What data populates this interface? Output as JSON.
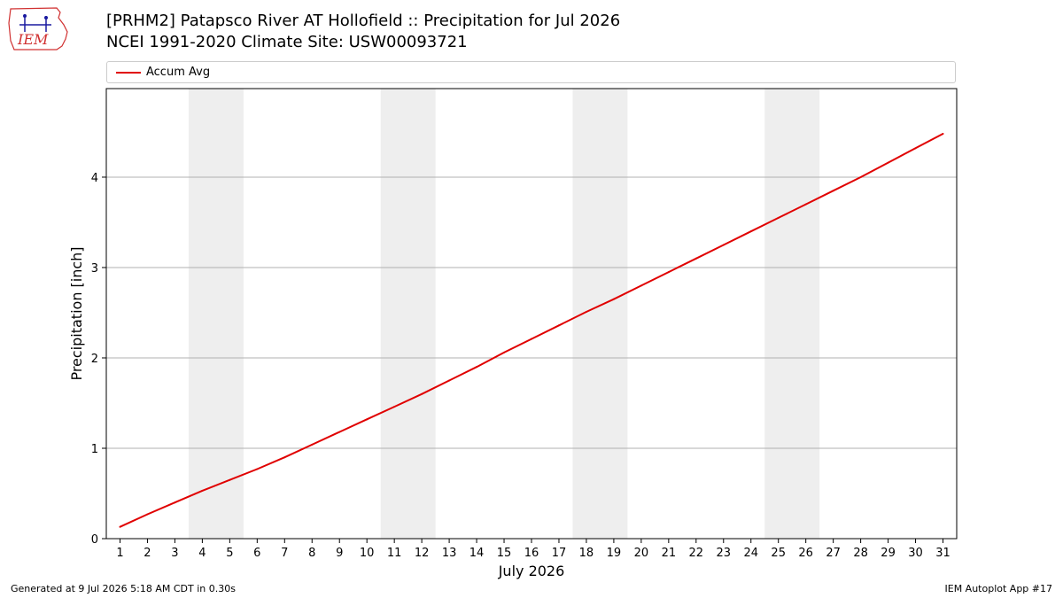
{
  "header": {
    "title_line1": "[PRHM2] Patapsco River  AT Hollofield :: Precipitation for Jul 2026",
    "title_line2": "NCEI 1991-2020 Climate Site: USW00093721",
    "logo_text": "IEM"
  },
  "colors": {
    "line": "#e00000",
    "weekend_band": "#eeeeee",
    "grid": "#b0b0b0",
    "logo": "#d03030"
  },
  "chart_data": {
    "type": "line",
    "title": "[PRHM2] Patapsco River  AT Hollofield :: Precipitation for Jul 2026",
    "subtitle": "NCEI 1991-2020 Climate Site: USW00093721",
    "xlabel": "July 2026",
    "ylabel": "Precipitation [inch]",
    "xlim": [
      0.5,
      31.5
    ],
    "ylim": [
      0,
      4.98
    ],
    "yticks": [
      0,
      1,
      2,
      3,
      4
    ],
    "x_tick_labels": [
      "1",
      "2",
      "3",
      "4",
      "5",
      "6",
      "7",
      "8",
      "9",
      "10",
      "11",
      "12",
      "13",
      "14",
      "15",
      "16",
      "17",
      "18",
      "19",
      "20",
      "21",
      "22",
      "23",
      "24",
      "25",
      "26",
      "27",
      "28",
      "29",
      "30",
      "31"
    ],
    "weekend_bands": [
      [
        3.5,
        5.5
      ],
      [
        10.5,
        12.5
      ],
      [
        17.5,
        19.5
      ],
      [
        24.5,
        26.5
      ]
    ],
    "grid": "y",
    "legend_position": "top",
    "series": [
      {
        "name": "Accum Avg",
        "x": [
          1,
          2,
          3,
          4,
          5,
          6,
          7,
          8,
          9,
          10,
          11,
          12,
          13,
          14,
          15,
          16,
          17,
          18,
          19,
          20,
          21,
          22,
          23,
          24,
          25,
          26,
          27,
          28,
          29,
          30,
          31
        ],
        "y": [
          0.13,
          0.27,
          0.4,
          0.53,
          0.65,
          0.77,
          0.9,
          1.04,
          1.18,
          1.32,
          1.46,
          1.6,
          1.75,
          1.9,
          2.06,
          2.21,
          2.36,
          2.51,
          2.65,
          2.8,
          2.95,
          3.1,
          3.25,
          3.4,
          3.55,
          3.7,
          3.85,
          4.0,
          4.16,
          4.32,
          4.48
        ]
      }
    ]
  },
  "footer": {
    "left": "Generated at 9 Jul 2026 5:18 AM CDT in 0.30s",
    "right": "IEM Autoplot App #17"
  }
}
